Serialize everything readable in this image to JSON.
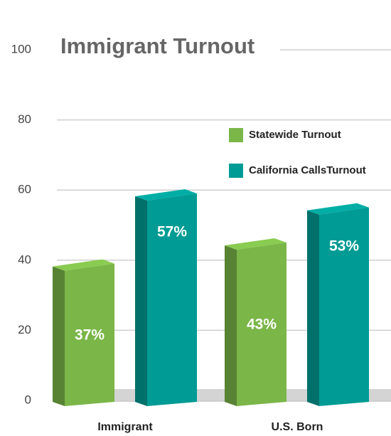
{
  "chart_data": {
    "type": "bar3d",
    "title": "Immigrant Turnout",
    "categories": [
      "Immigrant",
      "U.S. Born"
    ],
    "series": [
      {
        "name": "Statewide Turnout",
        "color": "#7ab648",
        "values": [
          37,
          43
        ],
        "value_labels": [
          "37%",
          "43%"
        ]
      },
      {
        "name": "California CallsTurnout",
        "color": "#009b94",
        "values": [
          57,
          53
        ],
        "value_labels": [
          "57%",
          "53%"
        ]
      }
    ],
    "ylim": [
      0,
      100
    ],
    "yticks": [
      0,
      20,
      40,
      60,
      80,
      100
    ],
    "grid": true,
    "legend": "upper right"
  }
}
